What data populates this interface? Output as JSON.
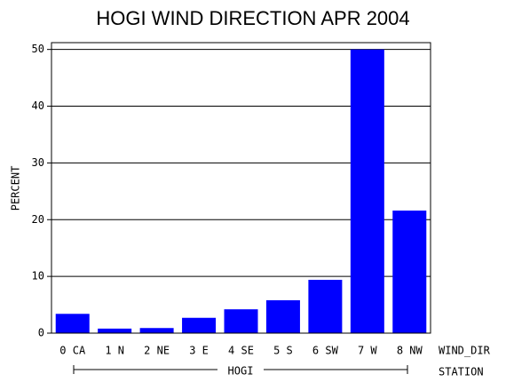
{
  "chart_data": {
    "type": "bar",
    "title": "HOGI WIND DIRECTION APR 2004",
    "y_label": "PERCENT",
    "x_label": "WIND_DIR",
    "group_axis_label": "STATION",
    "group": "HOGI",
    "categories": [
      "0 CA",
      "1 N",
      "2 NE",
      "3 E",
      "4 SE",
      "5 S",
      "6 SW",
      "7 W",
      "8 NW"
    ],
    "values": [
      3.4,
      0.8,
      0.9,
      2.7,
      4.2,
      5.8,
      9.4,
      50.0,
      21.6
    ],
    "color": "#0000ff",
    "ylim": [
      0,
      51.2
    ],
    "yticks": [
      0,
      10,
      20,
      30,
      40,
      50
    ],
    "grid": true
  }
}
